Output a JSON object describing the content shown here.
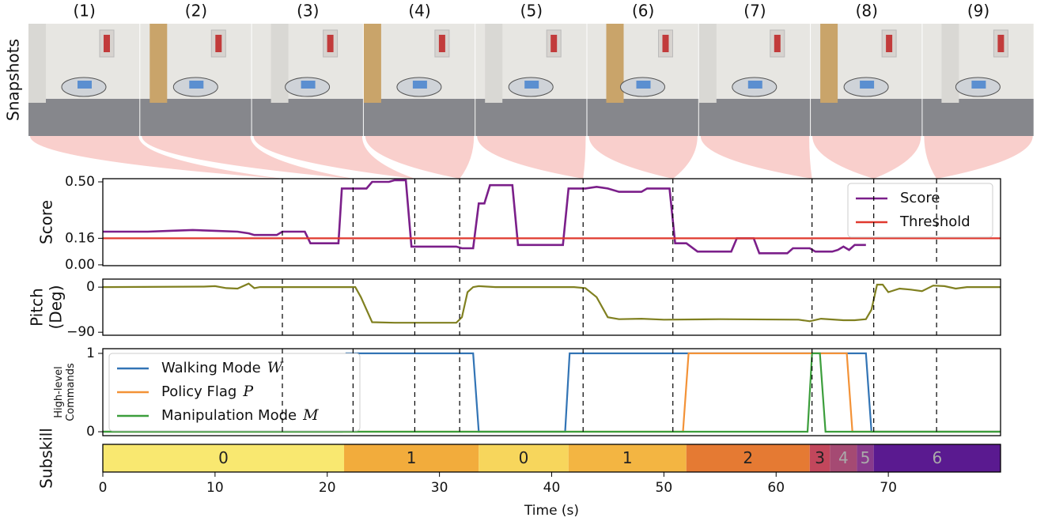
{
  "snapshots": {
    "ylabel": "Snapshots",
    "labels": [
      "(1)",
      "(2)",
      "(3)",
      "(4)",
      "(5)",
      "(6)",
      "(7)",
      "(8)",
      "(9)"
    ],
    "times": [
      16,
      22.3,
      27.8,
      31.8,
      42.8,
      50.8,
      63.2,
      68.7,
      74.3
    ]
  },
  "chart_data": [
    {
      "type": "line",
      "ylabel": [
        "Score"
      ],
      "ylim": [
        -0.005,
        0.519
      ],
      "yticks": [
        {
          "value": 0.0,
          "label": "0.00"
        },
        {
          "value": 0.16,
          "label": "0.16"
        },
        {
          "value": 0.5,
          "label": "0.50"
        }
      ],
      "legend": "upper right",
      "series": [
        {
          "name": "Score",
          "color": "#7b1f8a",
          "x": [
            0,
            4,
            6,
            8,
            10,
            12,
            13,
            13.5,
            15.5,
            16,
            18,
            18.5,
            21,
            21.3,
            23.5,
            24,
            25.5,
            26,
            27,
            27.5,
            30,
            31.5,
            32,
            33,
            33.5,
            34,
            34.5,
            36.5,
            37,
            41,
            41.5,
            43,
            44,
            45,
            46,
            48,
            48.5,
            50.5,
            51,
            52,
            53,
            56,
            56.5,
            58,
            58.5,
            61,
            61.5,
            63,
            63.5,
            65,
            65.5,
            66,
            66.5,
            67,
            68
          ],
          "values": [
            0.2,
            0.2,
            0.205,
            0.21,
            0.205,
            0.2,
            0.19,
            0.18,
            0.18,
            0.2,
            0.2,
            0.13,
            0.13,
            0.46,
            0.46,
            0.5,
            0.5,
            0.51,
            0.51,
            0.11,
            0.11,
            0.11,
            0.1,
            0.1,
            0.37,
            0.37,
            0.48,
            0.48,
            0.12,
            0.12,
            0.46,
            0.46,
            0.47,
            0.46,
            0.44,
            0.44,
            0.46,
            0.46,
            0.13,
            0.13,
            0.08,
            0.08,
            0.16,
            0.16,
            0.07,
            0.07,
            0.1,
            0.1,
            0.08,
            0.08,
            0.09,
            0.11,
            0.09,
            0.12,
            0.12
          ]
        },
        {
          "name": "Threshold",
          "color": "#e0392e",
          "x": [
            0,
            80
          ],
          "values": [
            0.16,
            0.16
          ]
        }
      ]
    },
    {
      "type": "line",
      "ylabel": [
        "Pitch",
        "(Deg)"
      ],
      "ylim": [
        -96,
        16
      ],
      "yticks": [
        {
          "value": -90,
          "label": "−90"
        },
        0
      ],
      "series": [
        {
          "name": "Pitch",
          "color": "#808020",
          "x": [
            0,
            9,
            10,
            11,
            12,
            13,
            13.5,
            14,
            22.5,
            23,
            24,
            26,
            28,
            31.5,
            32,
            32.5,
            33,
            33.5,
            35,
            42,
            43,
            44,
            45,
            46,
            48,
            50,
            55,
            62,
            63,
            64,
            66,
            67,
            68,
            68.5,
            69,
            69.5,
            70,
            71,
            72,
            73,
            74,
            75,
            76,
            77,
            80
          ],
          "values": [
            0,
            1,
            2,
            -2,
            -3,
            7,
            -2,
            0,
            0,
            -20,
            -70,
            -71,
            -71,
            -71,
            -60,
            -10,
            0,
            2,
            0,
            0,
            -2,
            -20,
            -60,
            -64,
            -63,
            -65,
            -64,
            -65,
            -68,
            -63,
            -66,
            -66,
            -64,
            -45,
            5,
            5,
            -10,
            -3,
            -5,
            -8,
            3,
            2,
            -3,
            0,
            0
          ]
        }
      ]
    },
    {
      "type": "line",
      "ylabel": [
        "High-level",
        "Commands"
      ],
      "ylim": [
        -0.05,
        1.06
      ],
      "yticks": [
        0,
        1
      ],
      "legend": "upper left",
      "series": [
        {
          "name": "Walking Mode",
          "symbol": "W",
          "color": "#3274b5",
          "x": [
            0,
            21.3,
            21.7,
            33.0,
            33.5,
            41.2,
            41.6,
            68.0,
            68.5,
            80
          ],
          "values": [
            0,
            0,
            1,
            1,
            0,
            0,
            1,
            1,
            0,
            0
          ]
        },
        {
          "name": "Policy Flag",
          "symbol": "P",
          "color": "#f39237",
          "x": [
            0,
            51.7,
            52.2,
            66.3,
            66.8,
            80
          ],
          "values": [
            0,
            0,
            1,
            1,
            0,
            0
          ]
        },
        {
          "name": "Manipulation Mode",
          "symbol": "M",
          "color": "#3c9e3c",
          "x": [
            0,
            62.8,
            63.2,
            63.9,
            64.4,
            80
          ],
          "values": [
            0,
            0,
            1,
            1,
            0,
            0
          ]
        }
      ]
    },
    {
      "type": "timeline",
      "ylabel": [
        "Subskill"
      ],
      "xlabel": "Time (s)",
      "xlim": [
        0,
        80
      ],
      "xticks": [
        0,
        10,
        20,
        30,
        40,
        50,
        60,
        70
      ],
      "segments": [
        {
          "start": 0,
          "end": 21.5,
          "value": 0,
          "color": "#f9e870",
          "text_color": "#222"
        },
        {
          "start": 21.5,
          "end": 33.5,
          "value": 1,
          "color": "#f2ac3c",
          "text_color": "#222"
        },
        {
          "start": 33.5,
          "end": 41.5,
          "value": 0,
          "color": "#f7d65c",
          "text_color": "#222"
        },
        {
          "start": 41.5,
          "end": 52,
          "value": 1,
          "color": "#f3b542",
          "text_color": "#222"
        },
        {
          "start": 52,
          "end": 63,
          "value": 2,
          "color": "#e57a33",
          "text_color": "#222"
        },
        {
          "start": 63,
          "end": 64.8,
          "value": 3,
          "color": "#c2475c",
          "text_color": "#222"
        },
        {
          "start": 64.8,
          "end": 67.2,
          "value": 4,
          "color": "#a54a73",
          "text_color": "#aaa"
        },
        {
          "start": 67.2,
          "end": 68.7,
          "value": 5,
          "color": "#883a8c",
          "text_color": "#aaa"
        },
        {
          "start": 68.7,
          "end": 80,
          "value": 6,
          "color": "#5a1a90",
          "text_color": "#aaa"
        }
      ]
    }
  ]
}
